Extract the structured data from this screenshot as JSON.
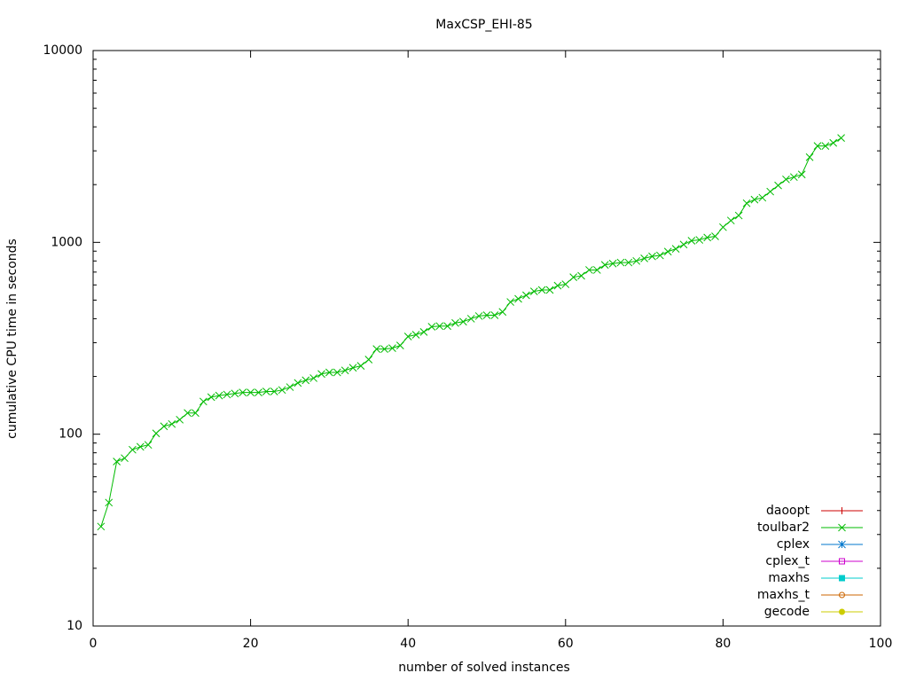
{
  "chart_data": {
    "type": "line",
    "title": "MaxCSP_EHI-85",
    "xlabel": "number of solved instances",
    "ylabel": "cumulative CPU time in seconds",
    "xlim": [
      0,
      100
    ],
    "xticks": [
      0,
      20,
      40,
      60,
      80,
      100
    ],
    "ylim": [
      10,
      10000
    ],
    "yticks": [
      10,
      100,
      1000,
      10000
    ],
    "log_y": true,
    "legend": "lower right",
    "series": [
      {
        "name": "daoopt",
        "color": "#cc0000",
        "marker": "plus",
        "x": [],
        "values": []
      },
      {
        "name": "toulbar2",
        "color": "#00bb00",
        "marker": "cross",
        "x": [
          1,
          2,
          3,
          4,
          5,
          6,
          7,
          8,
          9,
          10,
          11,
          12,
          13,
          14,
          15,
          16,
          17,
          18,
          19,
          20,
          21,
          22,
          23,
          24,
          25,
          26,
          27,
          28,
          29,
          30,
          31,
          32,
          33,
          34,
          35,
          36,
          37,
          38,
          39,
          40,
          41,
          42,
          43,
          44,
          45,
          46,
          47,
          48,
          49,
          50,
          51,
          52,
          53,
          54,
          55,
          56,
          57,
          58,
          59,
          60,
          61,
          62,
          63,
          64,
          65,
          66,
          67,
          68,
          69,
          70,
          71,
          72,
          73,
          74,
          75,
          76,
          77,
          78,
          79,
          80,
          81,
          82,
          83,
          84,
          85,
          86,
          87,
          88,
          89,
          90,
          91,
          92,
          93,
          94,
          95
        ],
        "values": [
          33,
          44,
          72,
          75,
          83,
          86,
          88,
          101,
          110,
          113,
          119,
          129,
          129,
          148,
          156,
          159,
          161,
          163,
          165,
          165,
          165,
          167,
          167,
          170,
          176,
          185,
          191,
          196,
          206,
          210,
          210,
          215,
          222,
          227,
          245,
          278,
          278,
          281,
          290,
          323,
          330,
          341,
          363,
          366,
          366,
          380,
          386,
          400,
          413,
          417,
          417,
          434,
          489,
          508,
          530,
          555,
          565,
          565,
          595,
          605,
          658,
          670,
          718,
          718,
          763,
          775,
          785,
          785,
          800,
          825,
          845,
          855,
          895,
          925,
          975,
          1020,
          1030,
          1060,
          1075,
          1200,
          1300,
          1380,
          1600,
          1670,
          1710,
          1840,
          1980,
          2130,
          2190,
          2260,
          2780,
          3180,
          3180,
          3300,
          3500
        ]
      },
      {
        "name": "cplex",
        "color": "#0077cc",
        "marker": "star",
        "x": [],
        "values": []
      },
      {
        "name": "cplex_t",
        "color": "#cc00cc",
        "marker": "box",
        "x": [],
        "values": []
      },
      {
        "name": "maxhs",
        "color": "#00cccc",
        "marker": "filled-box",
        "x": [],
        "values": []
      },
      {
        "name": "maxhs_t",
        "color": "#cc6600",
        "marker": "circle",
        "x": [],
        "values": []
      },
      {
        "name": "gecode",
        "color": "#cccc00",
        "marker": "filled-circle",
        "x": [],
        "values": []
      }
    ]
  }
}
